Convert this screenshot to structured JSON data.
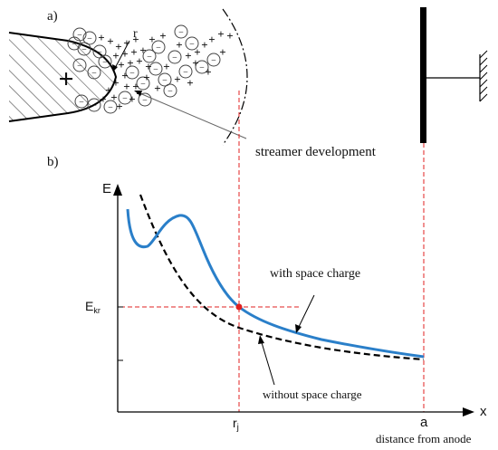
{
  "panel_a": {
    "label": "a)",
    "anode_sign": "+",
    "radius_label": "r",
    "streamer_label": "streamer development",
    "negative_ion_sign": "−",
    "positive_charge_sign": "+"
  },
  "panel_b": {
    "label": "b)",
    "y_axis_label": "E",
    "x_axis_label": "x",
    "e_tick_main": "E",
    "e_tick_sub": "kr",
    "rj_tick_main": "r",
    "rj_tick_sub": "j",
    "a_tick_label": "a",
    "with_space_charge_label": "with space charge",
    "without_space_charge_label": "without space charge",
    "x_axis_caption": "distance from anode"
  },
  "colors": {
    "with_space_charge_curve": "#2a7fc9",
    "guide_lines": "#e02020",
    "intersection_point": "#e02020",
    "black": "#000000"
  }
}
